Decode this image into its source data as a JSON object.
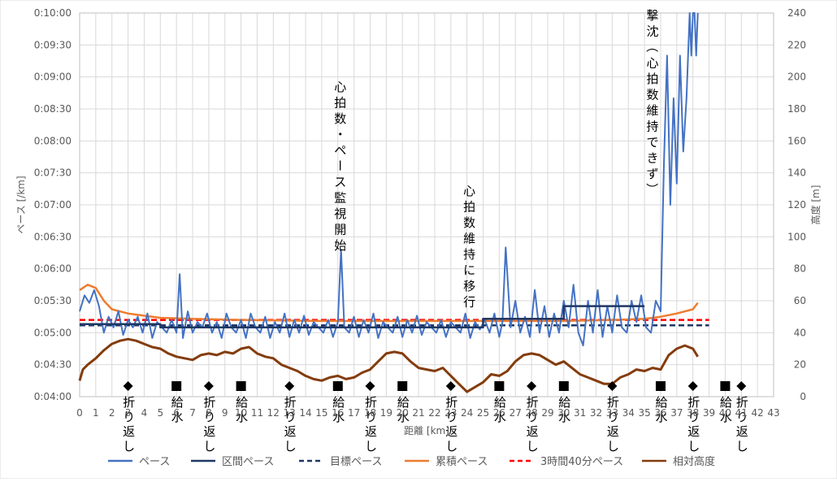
{
  "chart_data": {
    "type": "line",
    "left_axis": {
      "label": "ペース [/km]",
      "ticks": [
        "0:04:00",
        "0:04:30",
        "0:05:00",
        "0:05:30",
        "0:06:00",
        "0:06:30",
        "0:07:00",
        "0:07:30",
        "0:08:00",
        "0:08:30",
        "0:09:00",
        "0:09:30",
        "0:10:00"
      ],
      "range_seconds": [
        240,
        600
      ]
    },
    "right_axis": {
      "label": "高度 [m]",
      "ticks": [
        "0",
        "20",
        "40",
        "60",
        "80",
        "100",
        "120",
        "140",
        "160",
        "180",
        "200",
        "220",
        "240"
      ],
      "range": [
        0,
        240
      ]
    },
    "x_axis": {
      "label": "距離 [km]",
      "range": [
        0,
        43
      ],
      "ticks": [
        "0",
        "1",
        "2",
        "3",
        "4",
        "5",
        "6",
        "7",
        "8",
        "9",
        "10",
        "11",
        "12",
        "13",
        "14",
        "15",
        "16",
        "17",
        "18",
        "19",
        "20",
        "21",
        "22",
        "23",
        "24",
        "25",
        "26",
        "27",
        "28",
        "29",
        "30",
        "31",
        "32",
        "33",
        "34",
        "35",
        "36",
        "37",
        "38",
        "39",
        "40",
        "41",
        "42",
        "43"
      ]
    },
    "grid": true,
    "legend_position": "bottom",
    "legend": [
      {
        "name": "ペース",
        "color": "#4472c4",
        "style": "solid"
      },
      {
        "name": "区間ペース",
        "color": "#1f3864",
        "style": "solid"
      },
      {
        "name": "目標ペース",
        "color": "#1f3864",
        "style": "dashed"
      },
      {
        "name": "累積ペース",
        "color": "#ed7d31",
        "style": "solid"
      },
      {
        "name": "3時間40分ペース",
        "color": "#ff0000",
        "style": "dashed"
      },
      {
        "name": "相対高度",
        "color": "#843c0c",
        "style": "solid"
      }
    ],
    "series": [
      {
        "name": "区間ペース",
        "axis": "left",
        "x": [
          0,
          5,
          5,
          25,
          25,
          30,
          30,
          35
        ],
        "y": [
          308,
          308,
          305,
          305,
          313,
          313,
          325,
          325
        ]
      },
      {
        "name": "目標ペース",
        "axis": "left",
        "x": [
          0,
          39
        ],
        "y": [
          307,
          307
        ]
      },
      {
        "name": "3時間40分ペース",
        "axis": "left",
        "x": [
          0,
          39
        ],
        "y": [
          312,
          312
        ]
      },
      {
        "name": "累積ペース",
        "axis": "left",
        "x": [
          0,
          0.5,
          1,
          1.5,
          2,
          3,
          4,
          5,
          7,
          10,
          15,
          20,
          25,
          30,
          33,
          35,
          36,
          37,
          38,
          38.3
        ],
        "y": [
          340,
          345,
          342,
          330,
          322,
          318,
          316,
          314,
          313,
          312,
          311,
          311,
          311,
          311,
          312,
          313,
          315,
          318,
          322,
          328
        ]
      },
      {
        "name": "ペース",
        "axis": "left",
        "x": [
          0,
          0.3,
          0.6,
          0.9,
          1.2,
          1.5,
          1.8,
          2.1,
          2.4,
          2.7,
          3,
          3.3,
          3.6,
          3.9,
          4.2,
          4.5,
          4.8,
          5.1,
          5.4,
          5.7,
          6,
          6.2,
          6.4,
          6.7,
          7,
          7.3,
          7.6,
          7.9,
          8.2,
          8.5,
          8.8,
          9.1,
          9.4,
          9.7,
          10,
          10.3,
          10.6,
          10.9,
          11.2,
          11.5,
          11.8,
          12.1,
          12.4,
          12.7,
          13,
          13.3,
          13.6,
          13.9,
          14.2,
          14.5,
          14.8,
          15.1,
          15.4,
          15.7,
          16,
          16.2,
          16.4,
          16.7,
          17,
          17.3,
          17.6,
          17.9,
          18.2,
          18.5,
          18.8,
          19.1,
          19.4,
          19.7,
          20,
          20.3,
          20.6,
          20.9,
          21.2,
          21.5,
          21.8,
          22.1,
          22.4,
          22.7,
          23,
          23.3,
          23.6,
          23.9,
          24.2,
          24.5,
          24.8,
          25.1,
          25.4,
          25.7,
          26,
          26.2,
          26.4,
          26.7,
          27,
          27.3,
          27.6,
          27.9,
          28.2,
          28.5,
          28.8,
          29.1,
          29.4,
          29.7,
          30,
          30.3,
          30.6,
          30.9,
          31.2,
          31.5,
          31.8,
          32.1,
          32.4,
          32.7,
          33,
          33.3,
          33.6,
          33.9,
          34.2,
          34.5,
          34.8,
          35.1,
          35.4,
          35.7,
          36,
          36.2,
          36.4,
          36.6,
          36.8,
          37,
          37.2,
          37.4,
          37.6,
          37.8,
          37.9,
          38,
          38.1,
          38.2,
          38.3
        ],
        "y": [
          320,
          335,
          328,
          340,
          325,
          300,
          315,
          305,
          320,
          298,
          312,
          305,
          315,
          300,
          318,
          295,
          310,
          305,
          300,
          312,
          300,
          355,
          295,
          320,
          300,
          310,
          305,
          318,
          300,
          310,
          295,
          318,
          305,
          300,
          312,
          295,
          318,
          305,
          300,
          315,
          295,
          310,
          300,
          318,
          296,
          312,
          300,
          316,
          298,
          310,
          305,
          300,
          312,
          296,
          310,
          378,
          305,
          300,
          315,
          296,
          312,
          300,
          318,
          295,
          310,
          305,
          300,
          315,
          296,
          312,
          300,
          316,
          298,
          310,
          305,
          300,
          312,
          296,
          310,
          305,
          300,
          318,
          295,
          310,
          303,
          312,
          300,
          318,
          296,
          310,
          380,
          305,
          330,
          300,
          315,
          296,
          340,
          300,
          325,
          296,
          318,
          300,
          330,
          305,
          345,
          300,
          288,
          330,
          300,
          340,
          296,
          325,
          300,
          335,
          305,
          300,
          330,
          310,
          335,
          305,
          300,
          330,
          320,
          455,
          560,
          420,
          520,
          440,
          560,
          470,
          520,
          600,
          560,
          620,
          600,
          560,
          640
        ]
      },
      {
        "name": "相対高度",
        "axis": "right",
        "x": [
          0,
          0.2,
          0.5,
          1,
          1.5,
          2,
          2.5,
          3,
          3.5,
          4,
          4.5,
          5,
          5.5,
          6,
          6.5,
          7,
          7.5,
          8,
          8.5,
          9,
          9.5,
          10,
          10.5,
          11,
          11.5,
          12,
          12.5,
          13,
          13.5,
          14,
          14.5,
          15,
          15.5,
          16,
          16.5,
          17,
          17.5,
          18,
          18.5,
          19,
          19.5,
          20,
          20.5,
          21,
          21.5,
          22,
          22.5,
          23,
          23.5,
          24,
          24.5,
          25,
          25.5,
          26,
          26.5,
          27,
          27.5,
          28,
          28.5,
          29,
          29.5,
          30,
          30.5,
          31,
          31.5,
          32,
          32.5,
          33,
          33.5,
          34,
          34.5,
          35,
          35.5,
          36,
          36.5,
          37,
          37.5,
          38,
          38.3
        ],
        "y": [
          10,
          17,
          20,
          24,
          29,
          33,
          35,
          36,
          35,
          33,
          31,
          30,
          27,
          25,
          24,
          23,
          26,
          27,
          26,
          28,
          27,
          30,
          31,
          27,
          25,
          24,
          20,
          18,
          16,
          13,
          11,
          10,
          12,
          13,
          11,
          12,
          15,
          17,
          22,
          27,
          28,
          27,
          22,
          18,
          17,
          16,
          18,
          13,
          8,
          3,
          6,
          9,
          14,
          13,
          16,
          22,
          26,
          27,
          26,
          23,
          20,
          22,
          18,
          14,
          12,
          10,
          8,
          8,
          12,
          14,
          17,
          16,
          18,
          17,
          26,
          30,
          32,
          30,
          25
        ]
      }
    ],
    "annotations": [
      {
        "text": "心拍数・ペース監視開始",
        "x": 16
      },
      {
        "text": "心拍数維持に移行",
        "x": 24
      },
      {
        "text": "撃沈（心拍数維持できず）",
        "x": 35.5
      }
    ],
    "markers": [
      {
        "x": 3,
        "symbol": "diamond",
        "label": "折り返し"
      },
      {
        "x": 6,
        "symbol": "square",
        "label": "給水"
      },
      {
        "x": 8,
        "symbol": "diamond",
        "label": "折り返し"
      },
      {
        "x": 10,
        "symbol": "square",
        "label": "給水"
      },
      {
        "x": 13,
        "symbol": "diamond",
        "label": "折り返し"
      },
      {
        "x": 16,
        "symbol": "square",
        "label": "給水"
      },
      {
        "x": 18,
        "symbol": "diamond",
        "label": "折り返し"
      },
      {
        "x": 20,
        "symbol": "square",
        "label": "給水"
      },
      {
        "x": 23,
        "symbol": "diamond",
        "label": "折り返し"
      },
      {
        "x": 26,
        "symbol": "square",
        "label": "給水"
      },
      {
        "x": 28,
        "symbol": "diamond",
        "label": "折り返し"
      },
      {
        "x": 30,
        "symbol": "square",
        "label": "給水"
      },
      {
        "x": 33,
        "symbol": "diamond",
        "label": "折り返し"
      },
      {
        "x": 36,
        "symbol": "square",
        "label": "給水"
      },
      {
        "x": 38,
        "symbol": "diamond",
        "label": "折り返し"
      },
      {
        "x": 40,
        "symbol": "square",
        "label": "給水"
      },
      {
        "x": 41,
        "symbol": "diamond",
        "label": "折り返し"
      }
    ]
  }
}
